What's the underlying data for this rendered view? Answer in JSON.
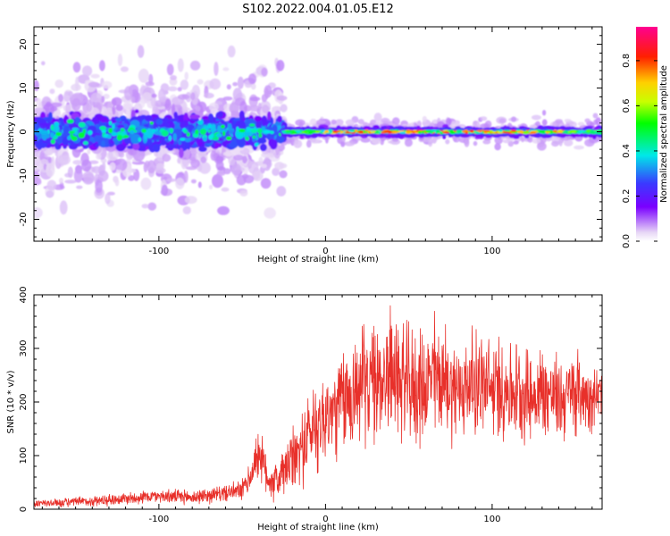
{
  "title": "S102.2022.004.01.05.E12",
  "chart_data": [
    {
      "type": "heatmap",
      "xlabel": "Height of straight line (km)",
      "ylabel": "Frequency (Hz)",
      "xlim": [
        -175,
        166
      ],
      "ylim": [
        -25,
        24
      ],
      "xticks": [
        -100,
        0,
        100
      ],
      "yticks": [
        -20,
        -10,
        0,
        10,
        20
      ],
      "colorbar": {
        "label": "Normalized spectral amplitude",
        "range": [
          0,
          0.95
        ],
        "ticks": [
          0.0,
          0.2,
          0.4,
          0.6,
          0.8
        ],
        "tick_labels": [
          "0.0",
          "0.2",
          "0.4",
          "0.6",
          "0.8"
        ],
        "colormap": [
          "#ffffff",
          "#e8d8f6",
          "#7a00ff",
          "#3a3aff",
          "#00e8e8",
          "#00ff00",
          "#c8ff00",
          "#ffd000",
          "#ff2000",
          "#ff0090"
        ]
      },
      "description_regions": [
        {
          "x_range": [
            -175,
            -25
          ],
          "freq_center": 0,
          "freq_core_halfwidth": 4,
          "amplitude": 0.3
        },
        {
          "x_range": [
            -25,
            166
          ],
          "freq_center": 0,
          "freq_core_halfwidth": 1,
          "amplitude": 0.8
        }
      ]
    },
    {
      "type": "line",
      "xlabel": "Height of straight line (km)",
      "ylabel": "SNR (10 * v/v)",
      "xlim": [
        -175,
        166
      ],
      "ylim": [
        0,
        400
      ],
      "xticks": [
        -100,
        0,
        100
      ],
      "yticks": [
        0,
        100,
        200,
        300,
        400
      ],
      "line_color": "#e8302a",
      "series": [
        {
          "x": [
            -175,
            -160,
            -140,
            -120,
            -100,
            -80,
            -60,
            -50,
            -45,
            -40,
            -35,
            -30,
            -25,
            -20,
            -15,
            -10,
            -5,
            0,
            5,
            10,
            15,
            20,
            25,
            30,
            35,
            40,
            45,
            50,
            55,
            60,
            65,
            70,
            75,
            80,
            85,
            90,
            95,
            100,
            105,
            110,
            115,
            120,
            125,
            130,
            135,
            140,
            145,
            150,
            155,
            160,
            166
          ],
          "y": [
            10,
            12,
            15,
            20,
            25,
            22,
            30,
            35,
            60,
            110,
            60,
            50,
            70,
            90,
            110,
            140,
            160,
            170,
            180,
            200,
            210,
            230,
            240,
            230,
            250,
            260,
            240,
            230,
            225,
            230,
            250,
            240,
            230,
            220,
            230,
            240,
            230,
            220,
            230,
            220,
            225,
            215,
            210,
            220,
            215,
            205,
            210,
            220,
            215,
            210,
            215
          ],
          "amplitude": [
            8,
            8,
            10,
            12,
            12,
            14,
            15,
            20,
            30,
            50,
            40,
            40,
            50,
            60,
            70,
            80,
            90,
            90,
            90,
            100,
            110,
            110,
            110,
            110,
            110,
            120,
            110,
            110,
            110,
            100,
            120,
            110,
            100,
            100,
            90,
            100,
            100,
            90,
            100,
            90,
            90,
            90,
            80,
            90,
            80,
            80,
            80,
            80,
            70,
            60,
            50
          ]
        }
      ]
    }
  ]
}
